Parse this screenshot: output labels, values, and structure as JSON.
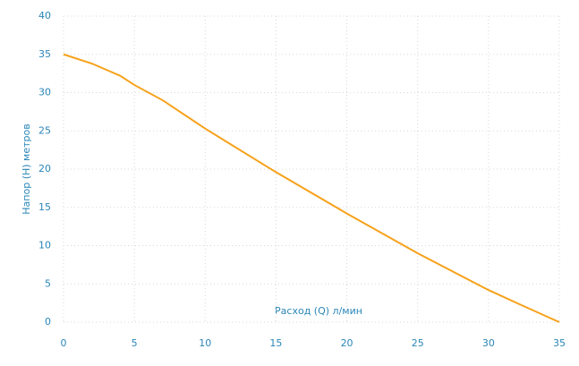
{
  "chart_data": {
    "type": "line",
    "x_label": "Расход (Q) л/мин",
    "y_label": "Напор (H) метров",
    "x": [
      0,
      2,
      4,
      5,
      7,
      10,
      15,
      20,
      25,
      30,
      32,
      35
    ],
    "series": [
      {
        "color": "#f7a11a",
        "values": [
          35,
          33.8,
          32.2,
          31,
          29,
          25.3,
          19.6,
          14.2,
          9,
          4.2,
          2.5,
          0
        ]
      }
    ],
    "xlim": [
      0,
      35
    ],
    "ylim": [
      0,
      40
    ],
    "xticks": [
      0,
      5,
      10,
      15,
      20,
      25,
      30,
      35
    ],
    "yticks": [
      0,
      5,
      10,
      15,
      20,
      25,
      30,
      35,
      40
    ],
    "grid": true
  }
}
